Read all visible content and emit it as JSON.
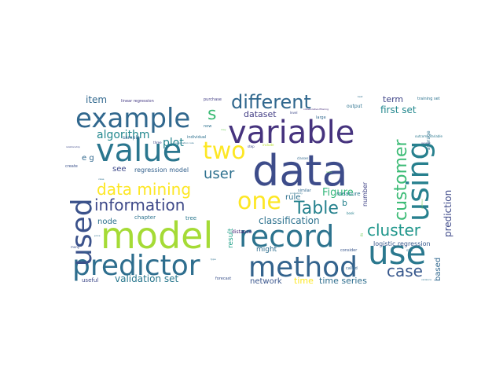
{
  "wordcloud": {
    "words": [
      {
        "text": "data",
        "color": "#3d4c8a"
      },
      {
        "text": "model",
        "color": "#a5db36"
      },
      {
        "text": "record",
        "color": "#2c738e"
      },
      {
        "text": "variable",
        "color": "#46337e"
      },
      {
        "text": "value",
        "color": "#2a768e"
      },
      {
        "text": "predictor",
        "color": "#2e6e8e"
      },
      {
        "text": "example",
        "color": "#31688e"
      },
      {
        "text": "method",
        "color": "#33638d"
      },
      {
        "text": "used",
        "color": "#3b528b"
      },
      {
        "text": "use",
        "color": "#2a788e"
      },
      {
        "text": "using",
        "color": "#27808e"
      },
      {
        "text": "one",
        "color": "#fde725"
      },
      {
        "text": "two",
        "color": "#fde725"
      },
      {
        "text": "different",
        "color": "#31688e"
      },
      {
        "text": "customer",
        "color": "#3bbb75"
      },
      {
        "text": "data mining",
        "color": "#fde725"
      },
      {
        "text": "information",
        "color": "#3e4989"
      },
      {
        "text": "Table",
        "color": "#26828e"
      },
      {
        "text": "cluster",
        "color": "#1f968b"
      },
      {
        "text": "case",
        "color": "#38588c"
      },
      {
        "text": "user",
        "color": "#2d708e"
      },
      {
        "text": "s",
        "color": "#3bbb75"
      },
      {
        "text": "algorithm",
        "color": "#23888e"
      },
      {
        "text": "plot",
        "color": "#25848e"
      },
      {
        "text": "classification",
        "color": "#2d718e"
      },
      {
        "text": "prediction",
        "color": "#3e4989"
      },
      {
        "text": "Figure",
        "color": "#32b67a"
      },
      {
        "text": "validation set",
        "color": "#2a788e"
      },
      {
        "text": "first set",
        "color": "#23888e"
      },
      {
        "text": "item",
        "color": "#31688e"
      },
      {
        "text": "network",
        "color": "#39558c"
      },
      {
        "text": "time series",
        "color": "#2e6e8e"
      },
      {
        "text": "time",
        "color": "#fde725"
      },
      {
        "text": "dataset",
        "color": "#433e85"
      },
      {
        "text": "term",
        "color": "#404588"
      },
      {
        "text": "based",
        "color": "#31688e"
      },
      {
        "text": "rule",
        "color": "#2d708e"
      },
      {
        "text": "b",
        "color": "#26828e"
      },
      {
        "text": "e g",
        "color": "#31688e"
      },
      {
        "text": "see",
        "color": "#3e4989"
      },
      {
        "text": "regression model",
        "color": "#34618d"
      },
      {
        "text": "node",
        "color": "#2c728e"
      },
      {
        "text": "result",
        "color": "#1fa088"
      },
      {
        "text": "might",
        "color": "#2e6e8e"
      },
      {
        "text": "number",
        "color": "#414487"
      },
      {
        "text": "logistic regression",
        "color": "#38598c"
      },
      {
        "text": "measure",
        "color": "#2a788e"
      },
      {
        "text": "chapter",
        "color": "#2c728e"
      },
      {
        "text": "tree",
        "color": "#2a788e"
      },
      {
        "text": "distance",
        "color": "#482878"
      },
      {
        "text": "useful",
        "color": "#3e4989"
      },
      {
        "text": "forecast",
        "color": "#3b528b"
      },
      {
        "text": "output",
        "color": "#2c728e"
      },
      {
        "text": "average",
        "color": "#2c728e"
      },
      {
        "text": "sample",
        "color": "#31688e"
      },
      {
        "text": "linear regression",
        "color": "#443983"
      },
      {
        "text": "purchase",
        "color": "#433e85"
      },
      {
        "text": "training set",
        "color": "#2c728e"
      },
      {
        "text": "outcome variable",
        "color": "#2a788e"
      },
      {
        "text": "individual",
        "color": "#2d708e"
      },
      {
        "text": "large",
        "color": "#31688e"
      },
      {
        "text": "similar",
        "color": "#31688e"
      },
      {
        "text": "called",
        "color": "#33638d"
      },
      {
        "text": "consider",
        "color": "#39568c"
      },
      {
        "text": "step",
        "color": "#3e4989"
      },
      {
        "text": "include",
        "color": "#b5de2b"
      },
      {
        "text": "three",
        "color": "#3e4989"
      },
      {
        "text": "create",
        "color": "#3b528b"
      },
      {
        "text": "many",
        "color": "#3b528b"
      },
      {
        "text": "classes",
        "color": "#31688e"
      },
      {
        "text": "collaborative filtering",
        "color": "#472d7b"
      },
      {
        "text": "association rule",
        "color": "#2c728e"
      },
      {
        "text": "relationship",
        "color": "#3e4989"
      },
      {
        "text": "class",
        "color": "#2d708e"
      },
      {
        "text": "now",
        "color": "#2d708e"
      },
      {
        "text": "may",
        "color": "#6ece58"
      },
      {
        "text": "lowly",
        "color": "#6ece58"
      },
      {
        "text": "probability",
        "color": "#2c728e"
      },
      {
        "text": "book",
        "color": "#27808e"
      },
      {
        "text": "sale",
        "color": "#2c728e"
      },
      {
        "text": "level",
        "color": "#3e4989"
      },
      {
        "text": "fit",
        "color": "#6ece58"
      },
      {
        "text": "type",
        "color": "#2d708e"
      },
      {
        "text": "need",
        "color": "#2d708e"
      },
      {
        "text": "price",
        "color": "#2d708e"
      },
      {
        "text": "cell",
        "color": "#2c728e"
      },
      {
        "text": "best",
        "color": "#2d708e"
      },
      {
        "text": "general",
        "color": "#3e4989"
      },
      {
        "text": "variance",
        "color": "#2c728e"
      },
      {
        "text": "partition",
        "color": "#6ece58"
      }
    ]
  }
}
